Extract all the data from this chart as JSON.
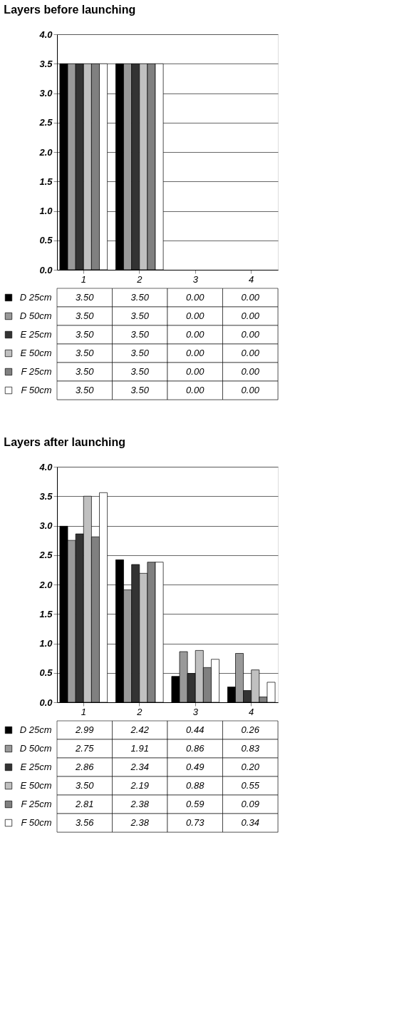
{
  "chart_data": [
    {
      "type": "bar",
      "title": "Layers before launching",
      "categories": [
        "1",
        "2",
        "3",
        "4"
      ],
      "ylim": [
        0,
        4
      ],
      "yticks": [
        {
          "value": 0,
          "label": "0.0"
        },
        {
          "value": 0.5,
          "label": "0.5"
        },
        {
          "value": 1,
          "label": "1.0"
        },
        {
          "value": 1.5,
          "label": "1.5"
        },
        {
          "value": 2,
          "label": "2.0"
        },
        {
          "value": 2.5,
          "label": "2.5"
        },
        {
          "value": 3,
          "label": "3.0"
        },
        {
          "value": 3.5,
          "label": "3.5"
        },
        {
          "value": 4,
          "label": "4.0"
        }
      ],
      "grid": "y",
      "legend": "bottom left",
      "series": [
        {
          "name": "D 25cm",
          "color": "#000000",
          "values": [
            3.5,
            3.5,
            0,
            0
          ],
          "value_labels": [
            "3.50",
            "3.50",
            "0.00",
            "0.00"
          ]
        },
        {
          "name": "D 50cm",
          "color": "#999999",
          "values": [
            3.5,
            3.5,
            0,
            0
          ],
          "value_labels": [
            "3.50",
            "3.50",
            "0.00",
            "0.00"
          ]
        },
        {
          "name": "E 25cm",
          "color": "#333333",
          "values": [
            3.5,
            3.5,
            0,
            0
          ],
          "value_labels": [
            "3.50",
            "3.50",
            "0.00",
            "0.00"
          ]
        },
        {
          "name": "E 50cm",
          "color": "#c0c0c0",
          "values": [
            3.5,
            3.5,
            0,
            0
          ],
          "value_labels": [
            "3.50",
            "3.50",
            "0.00",
            "0.00"
          ]
        },
        {
          "name": "F 25cm",
          "color": "#808080",
          "values": [
            3.5,
            3.5,
            0,
            0
          ],
          "value_labels": [
            "3.50",
            "3.50",
            "0.00",
            "0.00"
          ]
        },
        {
          "name": "F 50cm",
          "color": "#ffffff",
          "values": [
            3.5,
            3.5,
            0,
            0
          ],
          "value_labels": [
            "3.50",
            "3.50",
            "0.00",
            "0.00"
          ]
        }
      ]
    },
    {
      "type": "bar",
      "title": "Layers after launching",
      "categories": [
        "1",
        "2",
        "3",
        "4"
      ],
      "ylim": [
        0,
        4
      ],
      "yticks": [
        {
          "value": 0,
          "label": "0.0"
        },
        {
          "value": 0.5,
          "label": "0.5"
        },
        {
          "value": 1,
          "label": "1.0"
        },
        {
          "value": 1.5,
          "label": "1.5"
        },
        {
          "value": 2,
          "label": "2.0"
        },
        {
          "value": 2.5,
          "label": "2.5"
        },
        {
          "value": 3,
          "label": "3.0"
        },
        {
          "value": 3.5,
          "label": "3.5"
        },
        {
          "value": 4,
          "label": "4.0"
        }
      ],
      "grid": "y",
      "legend": "bottom left",
      "series": [
        {
          "name": "D 25cm",
          "color": "#000000",
          "values": [
            2.99,
            2.42,
            0.44,
            0.26
          ],
          "value_labels": [
            "2.99",
            "2.42",
            "0.44",
            "0.26"
          ]
        },
        {
          "name": "D 50cm",
          "color": "#999999",
          "values": [
            2.75,
            1.91,
            0.86,
            0.83
          ],
          "value_labels": [
            "2.75",
            "1.91",
            "0.86",
            "0.83"
          ]
        },
        {
          "name": "E 25cm",
          "color": "#333333",
          "values": [
            2.86,
            2.34,
            0.49,
            0.2
          ],
          "value_labels": [
            "2.86",
            "2.34",
            "0.49",
            "0.20"
          ]
        },
        {
          "name": "E 50cm",
          "color": "#c0c0c0",
          "values": [
            3.5,
            2.19,
            0.88,
            0.55
          ],
          "value_labels": [
            "3.50",
            "2.19",
            "0.88",
            "0.55"
          ]
        },
        {
          "name": "F 25cm",
          "color": "#808080",
          "values": [
            2.81,
            2.38,
            0.59,
            0.09
          ],
          "value_labels": [
            "2.81",
            "2.38",
            "0.59",
            "0.09"
          ]
        },
        {
          "name": "F 50cm",
          "color": "#ffffff",
          "values": [
            3.56,
            2.38,
            0.73,
            0.34
          ],
          "value_labels": [
            "3.56",
            "2.38",
            "0.73",
            "0.34"
          ]
        }
      ]
    }
  ]
}
